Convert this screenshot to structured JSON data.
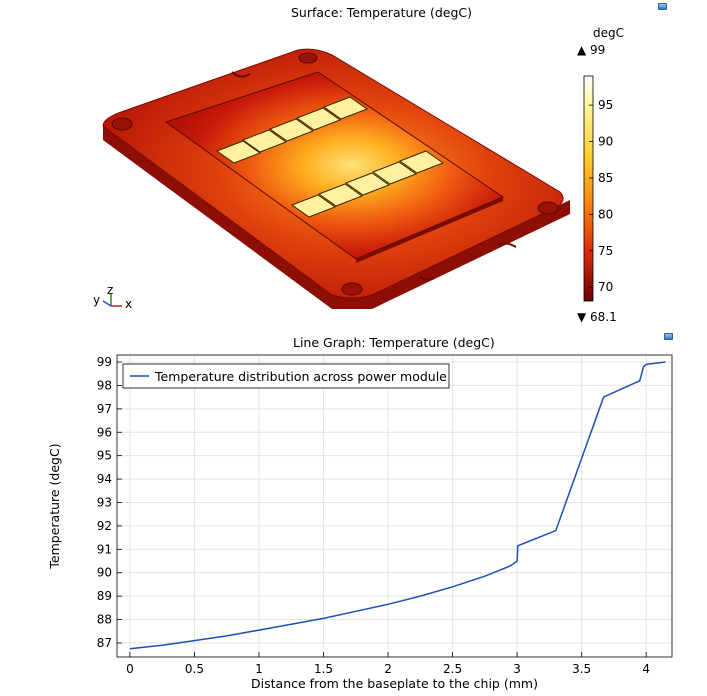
{
  "surface_plot": {
    "title": "Surface: Temperature (degC)",
    "colorbar": {
      "unit": "degC",
      "max_marker": "▲ 99",
      "min_marker": "▼ 68.1",
      "ticks": [
        "95",
        "90",
        "85",
        "80",
        "75",
        "70"
      ],
      "tick_values": [
        95,
        90,
        85,
        80,
        75,
        70
      ],
      "range": [
        68.1,
        99
      ]
    },
    "axes_triad": {
      "y": "y",
      "z": "z",
      "x": "x"
    }
  },
  "chart_data": {
    "type": "line",
    "title": "Line Graph: Temperature (degC)",
    "xlabel": "Distance from the baseplate to the chip (mm)",
    "ylabel": "Temperature (degC)",
    "xlim": [
      -0.1,
      4.2
    ],
    "ylim": [
      86.4,
      99.3
    ],
    "xticks": [
      0,
      0.5,
      1,
      1.5,
      2,
      2.5,
      3,
      3.5,
      4
    ],
    "xtick_labels": [
      "0",
      "0.5",
      "1",
      "1.5",
      "2",
      "2.5",
      "3",
      "3.5",
      "4"
    ],
    "yticks": [
      87,
      88,
      89,
      90,
      91,
      92,
      93,
      94,
      95,
      96,
      97,
      98,
      99
    ],
    "grid": true,
    "legend_position": "top-left",
    "series": [
      {
        "name": "Temperature distribution across power module",
        "color": "#1f4fb5",
        "x": [
          0,
          0.25,
          0.5,
          0.75,
          1.0,
          1.25,
          1.5,
          1.75,
          2.0,
          2.25,
          2.5,
          2.75,
          2.95,
          3.0,
          3.005,
          3.3,
          3.67,
          3.95,
          3.98,
          4.0,
          4.15
        ],
        "y": [
          86.75,
          86.9,
          87.1,
          87.3,
          87.55,
          87.8,
          88.05,
          88.35,
          88.65,
          89.0,
          89.4,
          89.85,
          90.3,
          90.5,
          91.15,
          91.8,
          97.5,
          98.2,
          98.8,
          98.9,
          99.0
        ]
      }
    ]
  }
}
